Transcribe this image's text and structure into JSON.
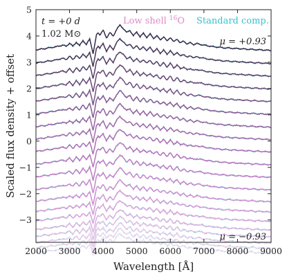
{
  "chart_data": {
    "type": "line",
    "title": "",
    "xlabel": "Wavelength [Å]",
    "ylabel": "Scaled flux density + offset",
    "xlim": [
      2000,
      9000
    ],
    "ylim": [
      -3.85,
      5.0
    ],
    "x_ticks": [
      2000,
      3000,
      4000,
      5000,
      6000,
      7000,
      8000,
      9000
    ],
    "y_ticks": [
      -3,
      -2,
      -1,
      0,
      1,
      2,
      3,
      4,
      5
    ],
    "grid": false,
    "legend": [
      {
        "label": "Low shell 16O",
        "text_prefix": "Low shell ",
        "sup": "16",
        "text_suffix": "O",
        "color": "#e089c8"
      },
      {
        "label": "Standard comp.",
        "text": "Standard comp.",
        "color": "#36c3d0"
      }
    ],
    "legend_position": "top-right",
    "annotations": {
      "time": "t = +0 d",
      "mass": "1.02 M⊙",
      "mu_top": "μ = +0.93",
      "mu_bottom": "μ = −0.93"
    },
    "series_note": "Twenty viewing angles; each spectrum offset vertically",
    "mu_values": [
      0.93,
      0.83,
      0.74,
      0.64,
      0.54,
      0.45,
      0.35,
      0.25,
      0.15,
      0.05,
      -0.05,
      -0.15,
      -0.25,
      -0.35,
      -0.45,
      -0.54,
      -0.64,
      -0.74,
      -0.83,
      -0.93
    ],
    "offsets": [
      3.55,
      3.05,
      2.57,
      2.08,
      1.6,
      1.11,
      0.62,
      0.15,
      -0.32,
      -0.81,
      -1.29,
      -1.77,
      -2.22,
      -2.61,
      -2.97,
      -3.3,
      -3.56,
      -3.8,
      -4.0,
      -4.18
    ],
    "colors": [
      "#3a2a4a",
      "#4b3456",
      "#5d3e66",
      "#6d4876",
      "#7c5284",
      "#8a5a93",
      "#9a63a1",
      "#a66aac",
      "#b06fb5",
      "#bb76be",
      "#c47dc5",
      "#cb86cb",
      "#d08fd0",
      "#d69bd6",
      "#dba6db",
      "#e0b3e0",
      "#e5bfe5",
      "#e9cae9",
      "#eed5ee",
      "#f1dff1"
    ],
    "template_points": {
      "x": [
        2000,
        2300,
        2600,
        2800,
        2900,
        3000,
        3100,
        3200,
        3300,
        3400,
        3500,
        3600,
        3650,
        3700,
        3750,
        3800,
        3850,
        3900,
        4000,
        4100,
        4200,
        4300,
        4400,
        4500,
        4600,
        4700,
        4800,
        4900,
        5000,
        5100,
        5200,
        5300,
        5400,
        5500,
        5600,
        5700,
        5800,
        5900,
        6000,
        6100,
        6200,
        6300,
        6400,
        6500,
        6600,
        6700,
        6800,
        7000,
        7300,
        7600,
        8000,
        8400,
        8700,
        9000
      ],
      "y": [
        -0.08,
        -0.02,
        0.04,
        0.1,
        0.06,
        0.18,
        0.05,
        0.22,
        0.08,
        0.28,
        0.12,
        0.34,
        0.08,
        -0.22,
        0.1,
        0.48,
        0.58,
        0.5,
        0.66,
        0.38,
        0.58,
        0.44,
        0.7,
        0.86,
        0.74,
        0.58,
        0.66,
        0.46,
        0.6,
        0.42,
        0.55,
        0.4,
        0.52,
        0.36,
        0.46,
        0.3,
        0.42,
        0.26,
        0.4,
        0.22,
        0.34,
        0.18,
        0.26,
        0.14,
        0.2,
        0.12,
        0.16,
        0.1,
        0.04,
        0.0,
        -0.03,
        -0.06,
        -0.08,
        -0.1
      ]
    }
  }
}
